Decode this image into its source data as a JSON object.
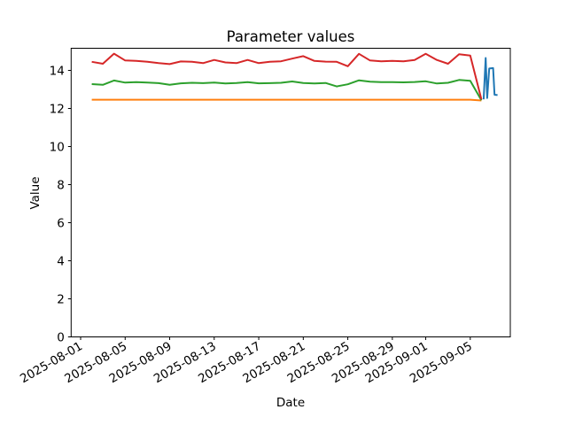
{
  "chart_data": {
    "type": "line",
    "title": "Parameter values",
    "xlabel": "Date",
    "ylabel": "Value",
    "grid": false,
    "legend": "none",
    "ylim": [
      0,
      15.16
    ],
    "xlim_days_from_2025_08_01": [
      -0.85,
      38.6
    ],
    "yticks": [
      0,
      2,
      4,
      6,
      8,
      10,
      12,
      14
    ],
    "xticks": [
      {
        "label": "2025-08-01",
        "day": 0
      },
      {
        "label": "2025-08-05",
        "day": 4
      },
      {
        "label": "2025-08-09",
        "day": 8
      },
      {
        "label": "2025-08-13",
        "day": 12
      },
      {
        "label": "2025-08-17",
        "day": 16
      },
      {
        "label": "2025-08-21",
        "day": 20
      },
      {
        "label": "2025-08-25",
        "day": 24
      },
      {
        "label": "2025-08-29",
        "day": 28
      },
      {
        "label": "2025-09-01",
        "day": 31
      },
      {
        "label": "2025-09-05",
        "day": 35
      }
    ],
    "xtick_rotation_deg": 30,
    "dates": [
      "2025-08-02",
      "2025-08-03",
      "2025-08-04",
      "2025-08-05",
      "2025-08-06",
      "2025-08-07",
      "2025-08-08",
      "2025-08-09",
      "2025-08-10",
      "2025-08-11",
      "2025-08-12",
      "2025-08-13",
      "2025-08-14",
      "2025-08-15",
      "2025-08-16",
      "2025-08-17",
      "2025-08-18",
      "2025-08-19",
      "2025-08-20",
      "2025-08-21",
      "2025-08-22",
      "2025-08-23",
      "2025-08-24",
      "2025-08-25",
      "2025-08-26",
      "2025-08-27",
      "2025-08-28",
      "2025-08-29",
      "2025-08-30",
      "2025-08-31",
      "2025-09-01",
      "2025-09-02",
      "2025-09-03",
      "2025-09-04",
      "2025-09-05",
      "2025-09-06"
    ],
    "series": [
      {
        "name": "series-blue",
        "color": "#1f77b4",
        "x_days": [
          36.2,
          36.38,
          36.52,
          36.7,
          37.05,
          37.18,
          37.45
        ],
        "values": [
          12.48,
          14.65,
          12.55,
          14.1,
          14.12,
          12.72,
          12.7
        ]
      },
      {
        "name": "series-orange",
        "color": "#ff7f0e",
        "values": [
          12.46,
          12.46,
          12.46,
          12.46,
          12.46,
          12.46,
          12.46,
          12.46,
          12.46,
          12.46,
          12.46,
          12.46,
          12.46,
          12.46,
          12.46,
          12.46,
          12.46,
          12.46,
          12.46,
          12.46,
          12.46,
          12.46,
          12.46,
          12.46,
          12.46,
          12.46,
          12.46,
          12.46,
          12.46,
          12.46,
          12.46,
          12.46,
          12.46,
          12.46,
          12.46,
          12.42
        ]
      },
      {
        "name": "series-green",
        "color": "#2ca02c",
        "values": [
          13.28,
          13.24,
          13.47,
          13.36,
          13.38,
          13.36,
          13.33,
          13.24,
          13.32,
          13.35,
          13.33,
          13.36,
          13.31,
          13.34,
          13.38,
          13.32,
          13.33,
          13.35,
          13.42,
          13.34,
          13.31,
          13.34,
          13.16,
          13.27,
          13.48,
          13.41,
          13.38,
          13.38,
          13.37,
          13.39,
          13.43,
          13.31,
          13.35,
          13.5,
          13.45,
          12.43
        ]
      },
      {
        "name": "series-red",
        "color": "#d62728",
        "values": [
          14.45,
          14.35,
          14.88,
          14.52,
          14.5,
          14.45,
          14.38,
          14.33,
          14.47,
          14.45,
          14.38,
          14.55,
          14.42,
          14.38,
          14.55,
          14.38,
          14.45,
          14.48,
          14.62,
          14.75,
          14.5,
          14.46,
          14.45,
          14.22,
          14.87,
          14.52,
          14.48,
          14.5,
          14.48,
          14.55,
          14.87,
          14.55,
          14.35,
          14.85,
          14.78,
          12.48
        ]
      }
    ]
  }
}
